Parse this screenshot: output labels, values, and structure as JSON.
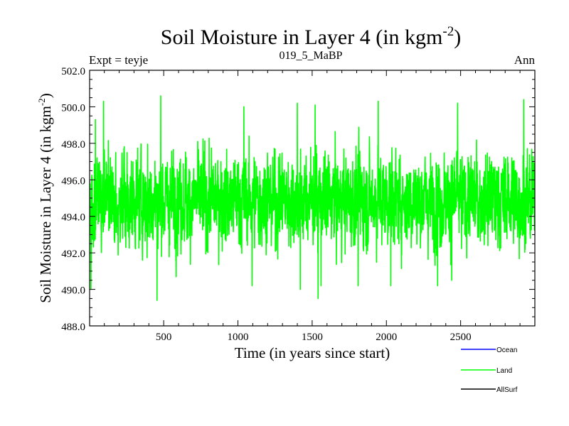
{
  "chart_data": {
    "type": "line",
    "title": "Soil Moisture in Layer 4 (in kgm",
    "title_superscript": "-2",
    "title_suffix": ")",
    "subtitle_left": "Expt = teyje",
    "subtitle_center": "019_5_MaBP",
    "subtitle_right": "Ann",
    "xlabel": "Time (in years since start)",
    "ylabel": "Soil Moisture in Layer 4 (in kgm",
    "ylabel_superscript": "-2",
    "ylabel_suffix": ")",
    "xlim": [
      1,
      3000
    ],
    "ylim": [
      488.0,
      502.0
    ],
    "x_ticks": [
      500,
      1000,
      1500,
      2000,
      2500
    ],
    "x_tick_labels": [
      "500",
      "1000",
      "1500",
      "2000",
      "2500"
    ],
    "y_ticks": [
      488.0,
      490.0,
      492.0,
      494.0,
      496.0,
      498.0,
      500.0,
      502.0
    ],
    "y_tick_labels": [
      "488.0",
      "490.0",
      "492.0",
      "494.0",
      "496.0",
      "498.0",
      "500.0",
      "502.0"
    ],
    "legend": [
      {
        "name": "Ocean",
        "color": "#0000ff"
      },
      {
        "name": "Land",
        "color": "#00ff00"
      },
      {
        "name": "AllSurf",
        "color": "#000000"
      }
    ],
    "series": [
      {
        "name": "Land",
        "color": "#00ff00",
        "x_start": 1,
        "x_end": 3000,
        "n_points": 3000,
        "mean": 494.9,
        "min": 489.4,
        "max": 500.6,
        "notable_peaks": [
          {
            "x": 40,
            "y": 499.3
          },
          {
            "x": 95,
            "y": 500.3
          },
          {
            "x": 480,
            "y": 500.6
          },
          {
            "x": 1040,
            "y": 500.0
          },
          {
            "x": 1400,
            "y": 500.2
          },
          {
            "x": 1520,
            "y": 500.1
          },
          {
            "x": 1945,
            "y": 500.3
          },
          {
            "x": 2480,
            "y": 500.2
          },
          {
            "x": 2925,
            "y": 500.4
          }
        ],
        "notable_troughs": [
          {
            "x": 10,
            "y": 490.0
          },
          {
            "x": 455,
            "y": 489.4
          },
          {
            "x": 1095,
            "y": 490.2
          },
          {
            "x": 1420,
            "y": 490.0
          },
          {
            "x": 1540,
            "y": 489.5
          },
          {
            "x": 1560,
            "y": 490.2
          },
          {
            "x": 1810,
            "y": 490.2
          },
          {
            "x": 2030,
            "y": 490.2
          },
          {
            "x": 2345,
            "y": 490.2
          },
          {
            "x": 2440,
            "y": 490.5
          }
        ]
      }
    ]
  }
}
